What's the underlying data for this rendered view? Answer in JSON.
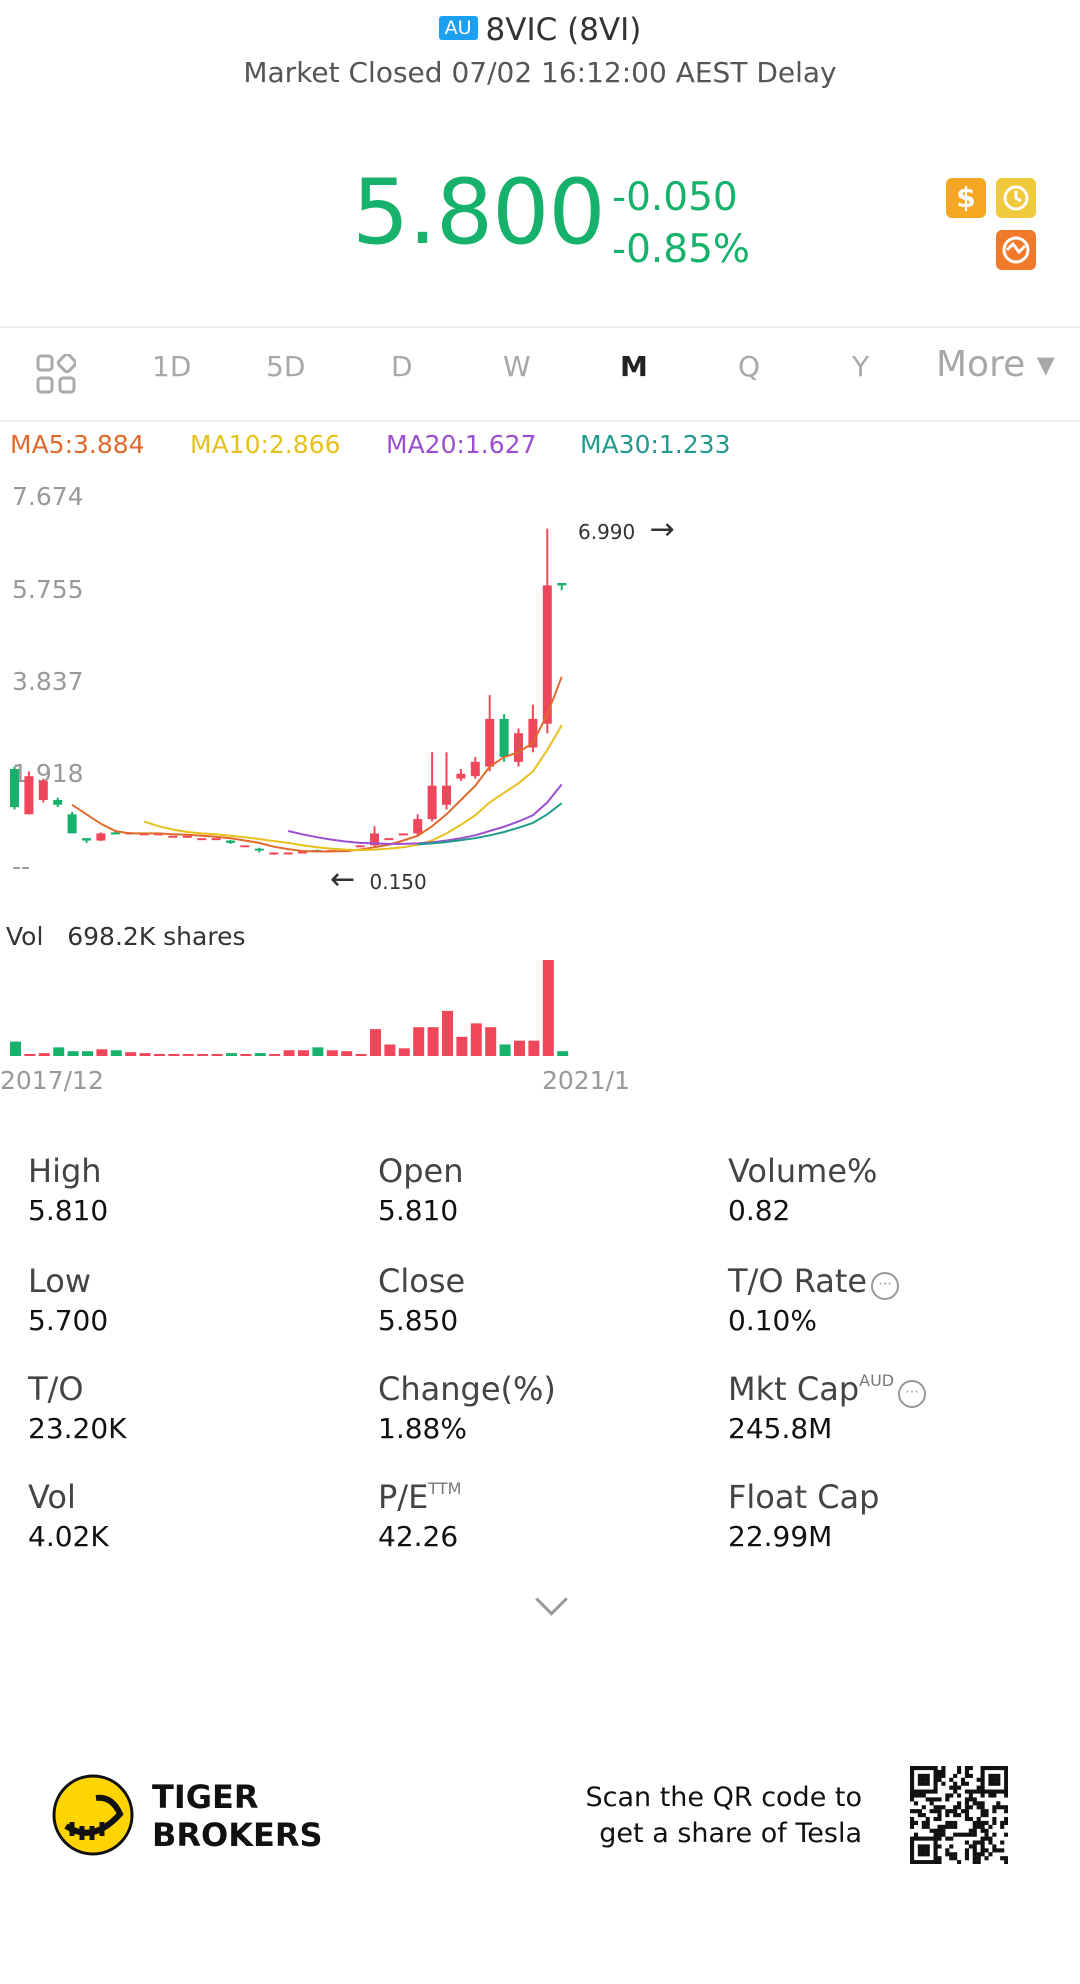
{
  "header": {
    "market_badge": "AU",
    "title": "8VIC (8VI)",
    "status": "Market Closed 07/02 16:12:00 AEST Delay"
  },
  "quote": {
    "price": "5.800",
    "change": "-0.050",
    "change_pct": "-0.85%",
    "color": "#16b16a"
  },
  "icons": {
    "dollar": "$",
    "history": "history-icon",
    "share": "share-icon"
  },
  "tabs": [
    {
      "label": "1D"
    },
    {
      "label": "5D"
    },
    {
      "label": "D"
    },
    {
      "label": "W"
    },
    {
      "label": "M",
      "active": true
    },
    {
      "label": "Q"
    },
    {
      "label": "Y"
    },
    {
      "label": "More ▾"
    }
  ],
  "ma": [
    {
      "label": "MA5:3.884",
      "color": "#e06a2e"
    },
    {
      "label": "MA10:2.866",
      "color": "#e8c01d"
    },
    {
      "label": "MA20:1.627",
      "color": "#9b4fd0"
    },
    {
      "label": "MA30:1.233",
      "color": "#1f9c8c"
    }
  ],
  "chart_data": {
    "type": "candlestick",
    "y_ticks": [
      "7.674",
      "5.755",
      "3.837",
      "1.918",
      "--"
    ],
    "ylim": [
      0,
      7.674
    ],
    "high_marker": "6.990",
    "low_marker": "0.150",
    "volume_label": "Vol",
    "volume_value": "698.2K shares",
    "x_labels": [
      "2017/12",
      "2021/1"
    ],
    "candles": [
      {
        "o": 1.95,
        "c": 1.15,
        "h": 2.0,
        "l": 1.1
      },
      {
        "o": 1.0,
        "c": 1.8,
        "h": 1.9,
        "l": 1.0
      },
      {
        "o": 1.3,
        "c": 1.7,
        "h": 1.75,
        "l": 1.25
      },
      {
        "o": 1.3,
        "c": 1.2,
        "h": 1.35,
        "l": 1.15
      },
      {
        "o": 1.0,
        "c": 0.6,
        "h": 1.05,
        "l": 0.6
      },
      {
        "o": 0.5,
        "c": 0.45,
        "h": 0.5,
        "l": 0.4
      },
      {
        "o": 0.45,
        "c": 0.6,
        "h": 0.62,
        "l": 0.44
      },
      {
        "o": 0.62,
        "c": 0.6,
        "h": 0.65,
        "l": 0.58
      },
      {
        "o": 0.6,
        "c": 0.62,
        "h": 0.63,
        "l": 0.59
      },
      {
        "o": 0.6,
        "c": 0.6,
        "h": 0.6,
        "l": 0.6
      },
      {
        "o": 0.6,
        "c": 0.6,
        "h": 0.6,
        "l": 0.6
      },
      {
        "o": 0.55,
        "c": 0.55,
        "h": 0.55,
        "l": 0.55
      },
      {
        "o": 0.55,
        "c": 0.55,
        "h": 0.55,
        "l": 0.55
      },
      {
        "o": 0.5,
        "c": 0.5,
        "h": 0.5,
        "l": 0.5
      },
      {
        "o": 0.5,
        "c": 0.5,
        "h": 0.5,
        "l": 0.5
      },
      {
        "o": 0.45,
        "c": 0.4,
        "h": 0.46,
        "l": 0.38
      },
      {
        "o": 0.35,
        "c": 0.35,
        "h": 0.35,
        "l": 0.35
      },
      {
        "o": 0.28,
        "c": 0.24,
        "h": 0.3,
        "l": 0.2
      },
      {
        "o": 0.2,
        "c": 0.2,
        "h": 0.2,
        "l": 0.15
      },
      {
        "o": 0.2,
        "c": 0.2,
        "h": 0.2,
        "l": 0.2
      },
      {
        "o": 0.2,
        "c": 0.22,
        "h": 0.23,
        "l": 0.19
      },
      {
        "o": 0.25,
        "c": 0.22,
        "h": 0.26,
        "l": 0.2
      },
      {
        "o": 0.25,
        "c": 0.25,
        "h": 0.25,
        "l": 0.25
      },
      {
        "o": 0.25,
        "c": 0.25,
        "h": 0.25,
        "l": 0.25
      },
      {
        "o": 0.35,
        "c": 0.35,
        "h": 0.35,
        "l": 0.35
      },
      {
        "o": 0.35,
        "c": 0.6,
        "h": 0.75,
        "l": 0.33
      },
      {
        "o": 0.5,
        "c": 0.5,
        "h": 0.5,
        "l": 0.5
      },
      {
        "o": 0.6,
        "c": 0.6,
        "h": 0.6,
        "l": 0.6
      },
      {
        "o": 0.6,
        "c": 0.9,
        "h": 1.0,
        "l": 0.55
      },
      {
        "o": 0.9,
        "c": 1.6,
        "h": 2.3,
        "l": 0.85
      },
      {
        "o": 1.2,
        "c": 1.6,
        "h": 2.3,
        "l": 1.1
      },
      {
        "o": 1.75,
        "c": 1.85,
        "h": 1.95,
        "l": 1.7
      },
      {
        "o": 1.8,
        "c": 2.1,
        "h": 2.2,
        "l": 1.75
      },
      {
        "o": 2.0,
        "c": 3.0,
        "h": 3.5,
        "l": 1.9
      },
      {
        "o": 3.0,
        "c": 2.2,
        "h": 3.1,
        "l": 2.1
      },
      {
        "o": 2.1,
        "c": 2.7,
        "h": 2.8,
        "l": 2.0
      },
      {
        "o": 2.4,
        "c": 3.0,
        "h": 3.3,
        "l": 2.3
      },
      {
        "o": 2.9,
        "c": 5.8,
        "h": 6.99,
        "l": 2.7
      },
      {
        "o": 5.85,
        "c": 5.8,
        "h": 5.81,
        "l": 5.7
      }
    ],
    "ma_series": {
      "ma5": [
        null,
        null,
        null,
        null,
        1.2,
        1.0,
        0.8,
        0.65,
        0.6,
        0.6,
        0.6,
        0.58,
        0.57,
        0.55,
        0.53,
        0.5,
        0.45,
        0.4,
        0.32,
        0.27,
        0.23,
        0.22,
        0.22,
        0.23,
        0.26,
        0.31,
        0.36,
        0.45,
        0.55,
        0.75,
        1.0,
        1.3,
        1.6,
        2.0,
        2.2,
        2.3,
        2.5,
        3.1,
        3.884
      ],
      "ma10": [
        null,
        null,
        null,
        null,
        null,
        null,
        null,
        null,
        null,
        0.85,
        0.75,
        0.68,
        0.63,
        0.6,
        0.58,
        0.55,
        0.52,
        0.48,
        0.44,
        0.4,
        0.35,
        0.31,
        0.28,
        0.26,
        0.25,
        0.26,
        0.28,
        0.31,
        0.36,
        0.45,
        0.6,
        0.78,
        0.98,
        1.25,
        1.45,
        1.65,
        1.9,
        2.35,
        2.866
      ],
      "ma20": [
        null,
        null,
        null,
        null,
        null,
        null,
        null,
        null,
        null,
        null,
        null,
        null,
        null,
        null,
        null,
        null,
        null,
        null,
        null,
        0.65,
        0.58,
        0.52,
        0.47,
        0.43,
        0.4,
        0.39,
        0.38,
        0.38,
        0.39,
        0.41,
        0.45,
        0.5,
        0.56,
        0.65,
        0.74,
        0.85,
        0.98,
        1.25,
        1.627
      ],
      "ma30": [
        null,
        null,
        null,
        null,
        null,
        null,
        null,
        null,
        null,
        null,
        null,
        null,
        null,
        null,
        null,
        null,
        null,
        null,
        null,
        null,
        null,
        null,
        null,
        null,
        null,
        null,
        null,
        null,
        0.37,
        0.39,
        0.42,
        0.46,
        0.5,
        0.56,
        0.63,
        0.72,
        0.82,
        1.0,
        1.233
      ]
    },
    "volumes": [
      0.15,
      0.02,
      0.03,
      0.09,
      0.05,
      0.05,
      0.07,
      0.06,
      0.04,
      0.03,
      0.0,
      0.0,
      0.02,
      0.02,
      0.0,
      0.03,
      0.0,
      0.03,
      0.0,
      0.06,
      0.06,
      0.09,
      0.06,
      0.05,
      0.0,
      0.28,
      0.12,
      0.08,
      0.3,
      0.3,
      0.47,
      0.2,
      0.34,
      0.3,
      0.12,
      0.16,
      0.16,
      1.0,
      0.05
    ]
  },
  "stats": [
    {
      "label": "High",
      "value": "5.810"
    },
    {
      "label": "Open",
      "value": "5.810"
    },
    {
      "label": "Volume%",
      "value": "0.82"
    },
    {
      "label": "Low",
      "value": "5.700"
    },
    {
      "label": "Close",
      "value": "5.850"
    },
    {
      "label": "T/O Rate",
      "value": "0.10%",
      "info": true
    },
    {
      "label": "T/O",
      "value": "23.20K"
    },
    {
      "label": "Change(%)",
      "value": "1.88%"
    },
    {
      "label": "Mkt Cap",
      "sup": "AUD",
      "value": "245.8M",
      "info": true
    },
    {
      "label": "Vol",
      "value": "4.02K"
    },
    {
      "label": "P/E",
      "sup": "TTM",
      "value": "42.26"
    },
    {
      "label": "Float Cap",
      "value": "22.99M"
    }
  ],
  "footer": {
    "brand_line1": "TIGER",
    "brand_line2": "BROKERS",
    "msg_line1": "Scan the QR code to",
    "msg_line2": "get a share of Tesla"
  }
}
